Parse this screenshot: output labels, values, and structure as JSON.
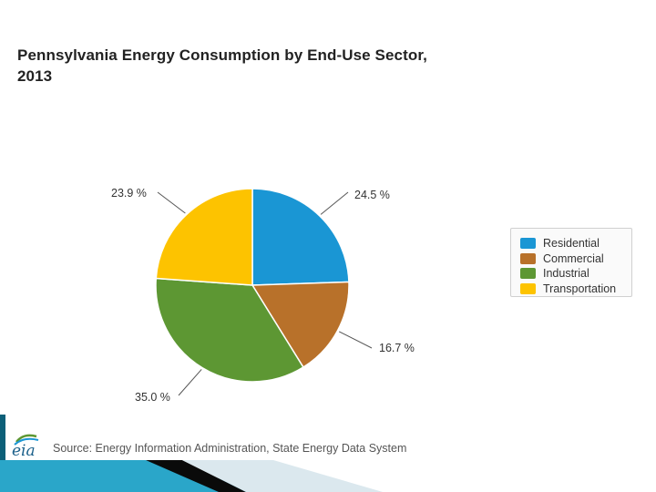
{
  "chart_data": {
    "type": "pie",
    "title": "Pennsylvania Energy Consumption by End-Use Sector, 2013",
    "categories": [
      "Residential",
      "Commercial",
      "Industrial",
      "Transportation"
    ],
    "values": [
      24.5,
      16.7,
      35.0,
      23.9
    ],
    "labels": [
      "24.5 %",
      "16.7 %",
      "35.0 %",
      "23.9 %"
    ],
    "colors": [
      "#1a96d4",
      "#b8712a",
      "#5d9733",
      "#fdc300"
    ],
    "legend_position": "right",
    "start_angle": "top (12 o'clock)",
    "direction": "clockwise"
  },
  "source": "Source: Energy Information Administration, State Energy Data System",
  "logo": {
    "text": "eia",
    "icon": "eia-logo-icon"
  }
}
